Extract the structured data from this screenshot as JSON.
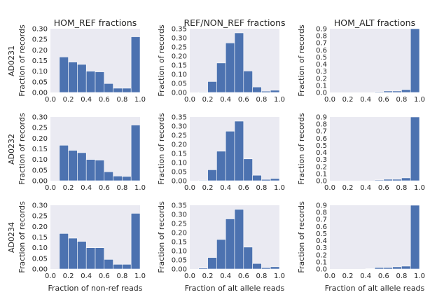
{
  "style": {
    "bar_color": "#4c72b0",
    "panel_bg": "#eaeaf2",
    "text_color": "#262626"
  },
  "columns": [
    {
      "title": "HOM_REF fractions",
      "xlabel": "Fraction of non-ref reads"
    },
    {
      "title": "REF/NON_REF fractions",
      "xlabel": "Fraction of alt allele reads"
    },
    {
      "title": "HOM_ALT fractions",
      "xlabel": "Fraction of alt allele reads"
    }
  ],
  "rows": [
    {
      "sample": "AD0231"
    },
    {
      "sample": "AD0232"
    },
    {
      "sample": "AD0234"
    }
  ],
  "chart_data": [
    {
      "type": "bar",
      "sample": "AD0231",
      "title": "HOM_REF fractions",
      "xlabel": "",
      "ylabel": "Fraction of records",
      "bin_edges": [
        0.1,
        0.2,
        0.3,
        0.4,
        0.5,
        0.6,
        0.7,
        0.8,
        0.9,
        1.0
      ],
      "values": [
        0.167,
        0.143,
        0.132,
        0.1,
        0.097,
        0.042,
        0.02,
        0.02,
        0.262
      ],
      "xlim": [
        0,
        1
      ],
      "ylim": [
        0,
        0.3
      ],
      "xticks": [
        "0.0",
        "0.2",
        "0.4",
        "0.6",
        "0.8",
        "1.0"
      ],
      "yticks": [
        "0.00",
        "0.05",
        "0.10",
        "0.15",
        "0.20",
        "0.25",
        "0.30"
      ]
    },
    {
      "type": "bar",
      "sample": "AD0231",
      "title": "REF/NON_REF fractions",
      "xlabel": "",
      "ylabel": "Fraction of records",
      "bin_edges": [
        0.1,
        0.2,
        0.3,
        0.4,
        0.5,
        0.6,
        0.7,
        0.8,
        0.9,
        1.0
      ],
      "values": [
        0.003,
        0.06,
        0.162,
        0.272,
        0.327,
        0.118,
        0.03,
        0.007,
        0.012
      ],
      "xlim": [
        0,
        1
      ],
      "ylim": [
        0,
        0.35
      ],
      "xticks": [
        "0.0",
        "0.2",
        "0.4",
        "0.6",
        "0.8",
        "1.0"
      ],
      "yticks": [
        "0.00",
        "0.05",
        "0.10",
        "0.15",
        "0.20",
        "0.25",
        "0.30",
        "0.35"
      ]
    },
    {
      "type": "bar",
      "sample": "AD0231",
      "title": "HOM_ALT fractions",
      "xlabel": "",
      "ylabel": "Fraction of records",
      "bin_edges": [
        0.1,
        0.2,
        0.3,
        0.4,
        0.5,
        0.6,
        0.7,
        0.8,
        0.9,
        1.0
      ],
      "values": [
        0.0,
        0.0,
        0.0,
        0.0,
        0.01,
        0.02,
        0.02,
        0.04,
        0.9
      ],
      "xlim": [
        0,
        1
      ],
      "ylim": [
        0,
        0.9
      ],
      "xticks": [
        "0.0",
        "0.2",
        "0.4",
        "0.6",
        "0.8",
        "1.0"
      ],
      "yticks": [
        "0.0",
        "0.1",
        "0.2",
        "0.3",
        "0.4",
        "0.5",
        "0.6",
        "0.7",
        "0.8",
        "0.9"
      ]
    },
    {
      "type": "bar",
      "sample": "AD0232",
      "title": "HOM_REF fractions",
      "xlabel": "",
      "ylabel": "Fraction of records",
      "bin_edges": [
        0.1,
        0.2,
        0.3,
        0.4,
        0.5,
        0.6,
        0.7,
        0.8,
        0.9,
        1.0
      ],
      "values": [
        0.167,
        0.143,
        0.132,
        0.1,
        0.097,
        0.042,
        0.022,
        0.02,
        0.262
      ],
      "xlim": [
        0,
        1
      ],
      "ylim": [
        0,
        0.3
      ],
      "xticks": [
        "0.0",
        "0.2",
        "0.4",
        "0.6",
        "0.8",
        "1.0"
      ],
      "yticks": [
        "0.00",
        "0.05",
        "0.10",
        "0.15",
        "0.20",
        "0.25",
        "0.30"
      ]
    },
    {
      "type": "bar",
      "sample": "AD0232",
      "title": "REF/NON_REF fractions",
      "xlabel": "",
      "ylabel": "Fraction of records",
      "bin_edges": [
        0.1,
        0.2,
        0.3,
        0.4,
        0.5,
        0.6,
        0.7,
        0.8,
        0.9,
        1.0
      ],
      "values": [
        0.003,
        0.06,
        0.162,
        0.272,
        0.327,
        0.12,
        0.03,
        0.007,
        0.012
      ],
      "xlim": [
        0,
        1
      ],
      "ylim": [
        0,
        0.35
      ],
      "xticks": [
        "0.0",
        "0.2",
        "0.4",
        "0.6",
        "0.8",
        "1.0"
      ],
      "yticks": [
        "0.00",
        "0.05",
        "0.10",
        "0.15",
        "0.20",
        "0.25",
        "0.30",
        "0.35"
      ]
    },
    {
      "type": "bar",
      "sample": "AD0232",
      "title": "HOM_ALT fractions",
      "xlabel": "",
      "ylabel": "Fraction of records",
      "bin_edges": [
        0.1,
        0.2,
        0.3,
        0.4,
        0.5,
        0.6,
        0.7,
        0.8,
        0.9,
        1.0
      ],
      "values": [
        0.0,
        0.0,
        0.0,
        0.0,
        0.01,
        0.02,
        0.02,
        0.04,
        0.9
      ],
      "xlim": [
        0,
        1
      ],
      "ylim": [
        0,
        0.9
      ],
      "xticks": [
        "0.0",
        "0.2",
        "0.4",
        "0.6",
        "0.8",
        "1.0"
      ],
      "yticks": [
        "0.0",
        "0.1",
        "0.2",
        "0.3",
        "0.4",
        "0.5",
        "0.6",
        "0.7",
        "0.8",
        "0.9"
      ]
    },
    {
      "type": "bar",
      "sample": "AD0234",
      "title": "HOM_REF fractions",
      "xlabel": "Fraction of non-ref reads",
      "ylabel": "Fraction of records",
      "bin_edges": [
        0.1,
        0.2,
        0.3,
        0.4,
        0.5,
        0.6,
        0.7,
        0.8,
        0.9,
        1.0
      ],
      "values": [
        0.167,
        0.145,
        0.13,
        0.1,
        0.1,
        0.045,
        0.022,
        0.022,
        0.262
      ],
      "xlim": [
        0,
        1
      ],
      "ylim": [
        0,
        0.3
      ],
      "xticks": [
        "0.0",
        "0.2",
        "0.4",
        "0.6",
        "0.8",
        "1.0"
      ],
      "yticks": [
        "0.00",
        "0.05",
        "0.10",
        "0.15",
        "0.20",
        "0.25",
        "0.30"
      ]
    },
    {
      "type": "bar",
      "sample": "AD0234",
      "title": "REF/NON_REF fractions",
      "xlabel": "Fraction of alt allele reads",
      "ylabel": "Fraction of records",
      "bin_edges": [
        0.1,
        0.2,
        0.3,
        0.4,
        0.5,
        0.6,
        0.7,
        0.8,
        0.9,
        1.0
      ],
      "values": [
        0.005,
        0.063,
        0.162,
        0.275,
        0.327,
        0.12,
        0.03,
        0.007,
        0.012
      ],
      "xlim": [
        0,
        1
      ],
      "ylim": [
        0,
        0.35
      ],
      "xticks": [
        "0.0",
        "0.2",
        "0.4",
        "0.6",
        "0.8",
        "1.0"
      ],
      "yticks": [
        "0.00",
        "0.05",
        "0.10",
        "0.15",
        "0.20",
        "0.25",
        "0.30",
        "0.35"
      ]
    },
    {
      "type": "bar",
      "sample": "AD0234",
      "title": "HOM_ALT fractions",
      "xlabel": "Fraction of alt allele reads",
      "ylabel": "Fraction of records",
      "bin_edges": [
        0.1,
        0.2,
        0.3,
        0.4,
        0.5,
        0.6,
        0.7,
        0.8,
        0.9,
        1.0
      ],
      "values": [
        0.0,
        0.0,
        0.0,
        0.005,
        0.02,
        0.02,
        0.03,
        0.04,
        0.9
      ],
      "xlim": [
        0,
        1
      ],
      "ylim": [
        0,
        0.9
      ],
      "xticks": [
        "0.0",
        "0.2",
        "0.4",
        "0.6",
        "0.8",
        "1.0"
      ],
      "yticks": [
        "0.0",
        "0.1",
        "0.2",
        "0.3",
        "0.4",
        "0.5",
        "0.6",
        "0.7",
        "0.8",
        "0.9"
      ]
    }
  ]
}
